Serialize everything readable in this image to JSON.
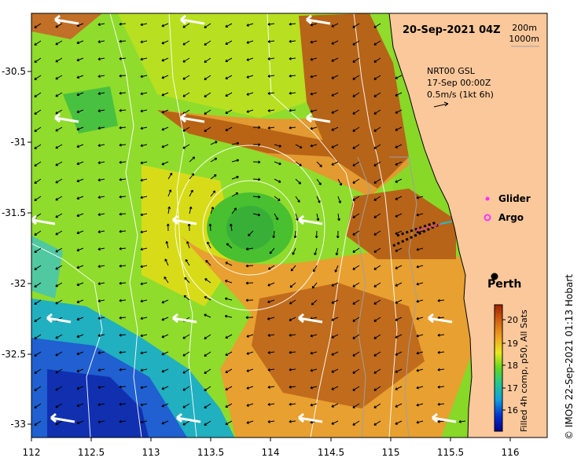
{
  "header": {
    "date_time": "20-Sep-2021 04Z",
    "contour_200": "200m",
    "contour_1000": "1000m"
  },
  "current_info": {
    "product": "NRT00 GSL",
    "time": "17-Sep 00:00Z",
    "scale": "0.5m/s (1kt 6h)"
  },
  "legend": {
    "glider": "Glider",
    "argo": "Argo",
    "glider_color": "#ff33ff",
    "argo_color": "#ff33ff"
  },
  "places": {
    "city": "Perth"
  },
  "axes": {
    "x_ticks": [
      "112",
      "112.5",
      "113",
      "113.5",
      "114",
      "114.5",
      "115",
      "115.5",
      "116"
    ],
    "y_ticks": [
      "-30.5",
      "-31",
      "-31.5",
      "-32",
      "-32.5",
      "-33"
    ]
  },
  "colorbar": {
    "label": "Filled 4h comp, p50, All Sats",
    "ticks": [
      "20",
      "19",
      "18",
      "17",
      "16"
    ]
  },
  "credit": "© IMOS 22-Sep-2021 01:13 Hobart",
  "colors": {
    "land": "#fbc89b",
    "sst_warm": "#b85a10",
    "sst_mid": "#e89a20",
    "sst_yellow": "#e8e020",
    "sst_green": "#80d820",
    "sst_cold": "#1040d0"
  }
}
